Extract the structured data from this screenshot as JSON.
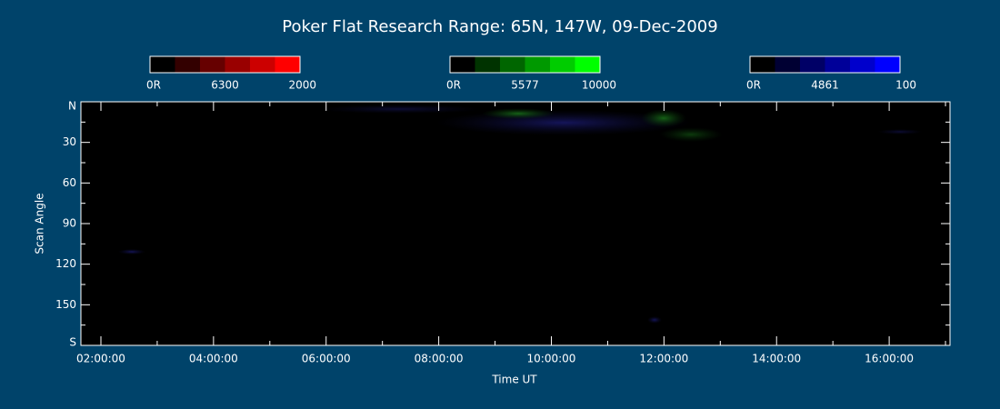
{
  "chart_data": {
    "type": "keogram",
    "title": "Poker Flat Research Range: 65N, 147W, 09-Dec-2009",
    "xlabel": "Time UT",
    "ylabel": "Scan Angle",
    "xlim": [
      1.645,
      17.08
    ],
    "xticks": [
      {
        "value": 2,
        "label": "02:00:00"
      },
      {
        "value": 4,
        "label": "04:00:00"
      },
      {
        "value": 6,
        "label": "06:00:00"
      },
      {
        "value": 8,
        "label": "08:00:00"
      },
      {
        "value": 10,
        "label": "10:00:00"
      },
      {
        "value": 12,
        "label": "12:00:00"
      },
      {
        "value": 14,
        "label": "14:00:00"
      },
      {
        "value": 16,
        "label": "16:00:00"
      }
    ],
    "xminorticks": [
      3,
      5,
      7,
      9,
      11,
      13,
      15,
      17
    ],
    "ylim": [
      0,
      180
    ],
    "yticks": [
      {
        "value": 0,
        "label": "N"
      },
      30,
      60,
      90,
      120,
      150,
      {
        "value": 180,
        "label": "S"
      }
    ],
    "yminorticks": [
      15,
      45,
      75,
      105,
      135,
      165
    ],
    "colorbars": [
      {
        "min_label": "0R",
        "name": "6300",
        "max": 2000,
        "color": "#ff0000"
      },
      {
        "min_label": "0R",
        "name": "5577",
        "max": 10000,
        "color": "#00ff00"
      },
      {
        "min_label": "0R",
        "name": "4861",
        "max": 100,
        "color": "#0000ff"
      }
    ]
  }
}
